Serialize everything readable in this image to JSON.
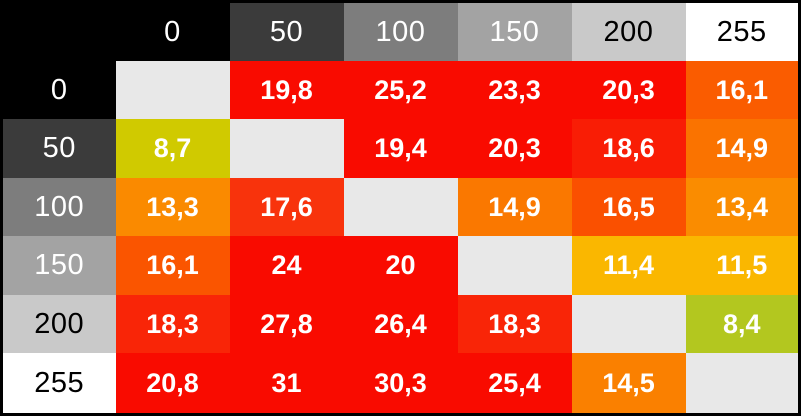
{
  "chart_data": {
    "type": "heatmap",
    "title": "",
    "xlabel": "",
    "ylabel": "",
    "x_labels": [
      "0",
      "50",
      "100",
      "150",
      "200",
      "255"
    ],
    "y_labels": [
      "0",
      "50",
      "100",
      "150",
      "200",
      "255"
    ],
    "values": [
      [
        null,
        19.8,
        25.2,
        23.3,
        20.3,
        16.1
      ],
      [
        8.7,
        null,
        19.4,
        20.3,
        18.6,
        14.9
      ],
      [
        13.3,
        17.6,
        null,
        14.9,
        16.5,
        13.4
      ],
      [
        16.1,
        24,
        20,
        null,
        11.4,
        11.5
      ],
      [
        18.3,
        27.8,
        26.4,
        18.3,
        null,
        8.4
      ],
      [
        20.8,
        31,
        30.3,
        25.4,
        14.5,
        null
      ]
    ],
    "display": [
      [
        "",
        "19,8",
        "25,2",
        "23,3",
        "20,3",
        "16,1"
      ],
      [
        "8,7",
        "",
        "19,4",
        "20,3",
        "18,6",
        "14,9"
      ],
      [
        "13,3",
        "17,6",
        "",
        "14,9",
        "16,5",
        "13,4"
      ],
      [
        "16,1",
        "24",
        "20",
        "",
        "11,4",
        "11,5"
      ],
      [
        "18,3",
        "27,8",
        "26,4",
        "18,3",
        "",
        "8,4"
      ],
      [
        "20,8",
        "31",
        "30,3",
        "25,4",
        "14,5",
        ""
      ]
    ],
    "cell_colors": [
      [
        "#e8e8e8",
        "#f90b00",
        "#f90b00",
        "#f90b00",
        "#f90b00",
        "#fa5c00"
      ],
      [
        "#d0ca00",
        "#e8e8e8",
        "#f90b00",
        "#f90b00",
        "#f91d05",
        "#fa7300"
      ],
      [
        "#fa8a00",
        "#f8330c",
        "#e8e8e8",
        "#fa7800",
        "#fa5000",
        "#fa8c00"
      ],
      [
        "#fa5500",
        "#f90b00",
        "#f90b00",
        "#e8e8e8",
        "#fab700",
        "#fab700"
      ],
      [
        "#f92507",
        "#f90b00",
        "#f90b00",
        "#f92507",
        "#e8e8e8",
        "#b3c71f"
      ],
      [
        "#f90b00",
        "#f90b00",
        "#f90b00",
        "#f90b00",
        "#fa8000",
        "#e8e8e8"
      ]
    ],
    "value_text_color": "#ffffff",
    "empty_cell_color": "#e8e8e8",
    "corner_bg": "#000000",
    "header_bg": [
      "#000000",
      "#3b3b3b",
      "#7d7d7d",
      "#a3a3a3",
      "#c9c9c9",
      "#ffffff"
    ],
    "header_fg": [
      "#ffffff",
      "#ffffff",
      "#ffffff",
      "#ffffff",
      "#000000",
      "#000000"
    ],
    "border_color": "#000000",
    "legend_position": "none",
    "grid": false
  }
}
